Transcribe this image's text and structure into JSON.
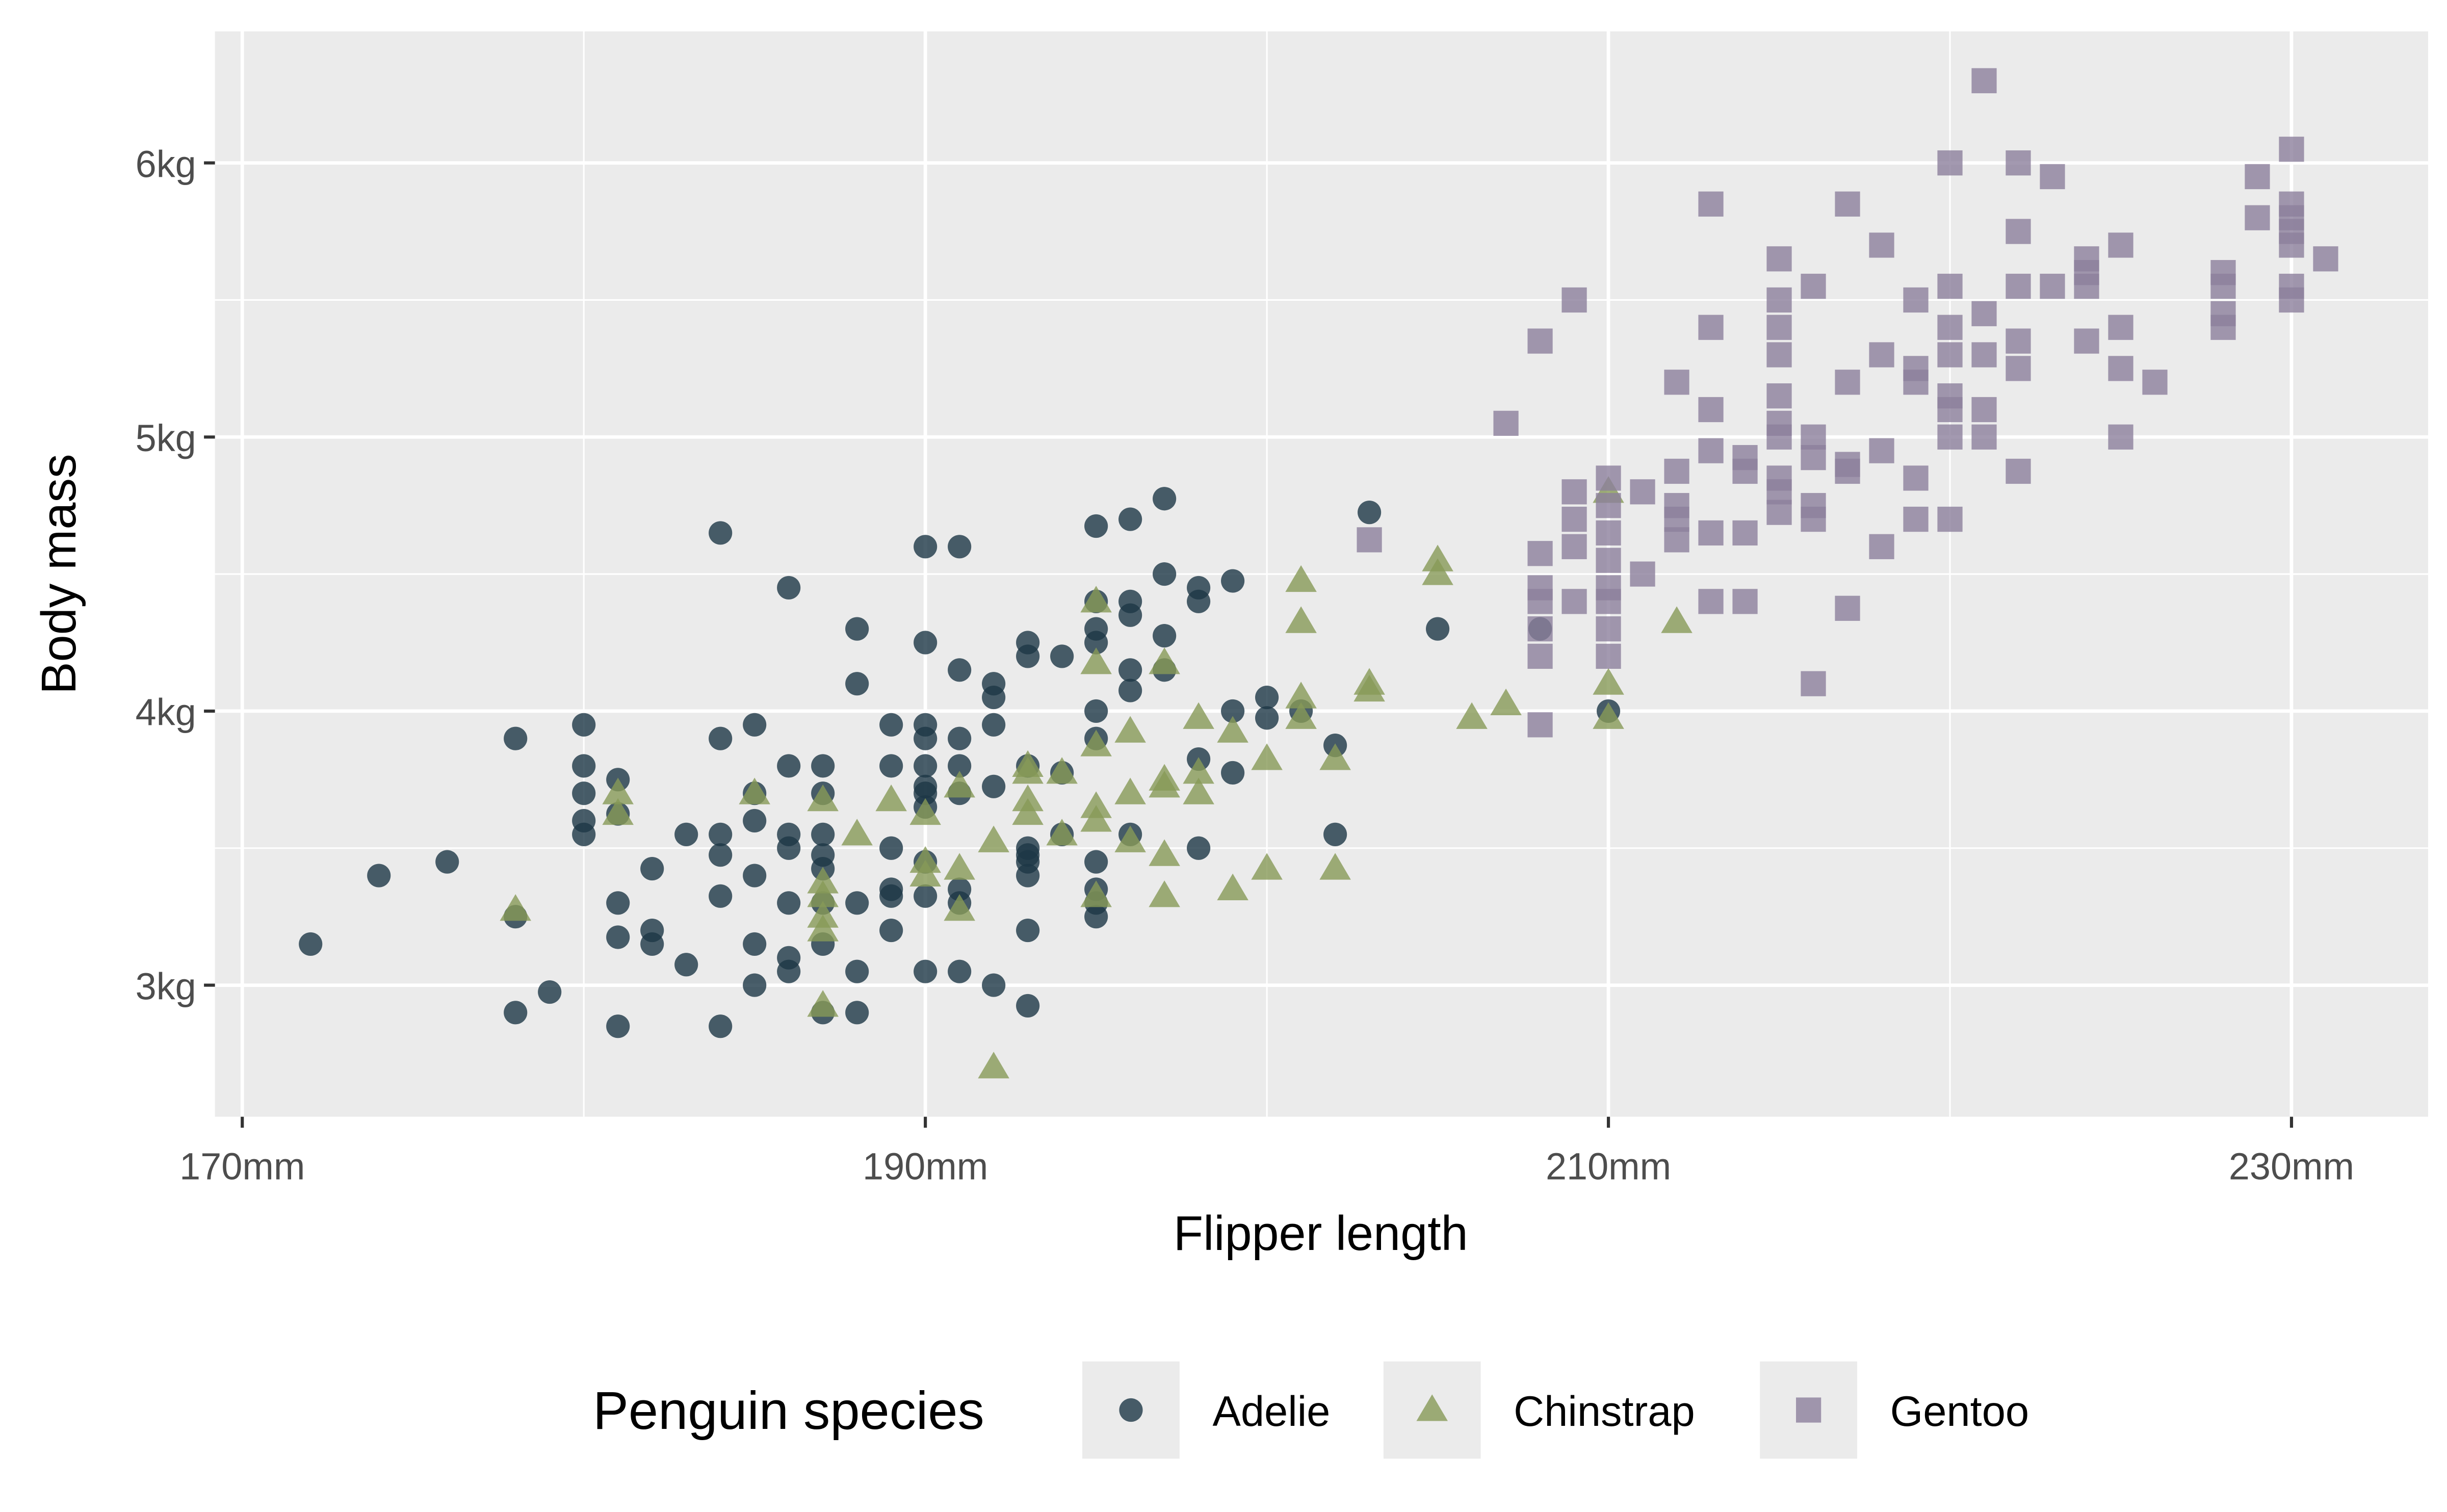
{
  "chart_data": {
    "type": "scatter",
    "title": "",
    "xlabel": "Flipper length",
    "ylabel": "Body mass",
    "xlim": [
      169.2,
      234.0
    ],
    "ylim": [
      2.52,
      6.48
    ],
    "x_ticks": [
      170,
      190,
      210,
      230
    ],
    "x_tick_labels": [
      "170mm",
      "190mm",
      "210mm",
      "230mm"
    ],
    "x_minor": [
      180,
      200,
      220
    ],
    "y_ticks": [
      3,
      4,
      5,
      6
    ],
    "y_tick_labels": [
      "3kg",
      "4kg",
      "5kg",
      "6kg"
    ],
    "y_minor": [
      3.5,
      4.5,
      5.5
    ],
    "grid": true,
    "legend": {
      "title": "Penguin species",
      "placement": "bottom"
    },
    "series": [
      {
        "name": "Adelie",
        "shape": "circle",
        "color": "#1d3746",
        "points": [
          [
            172,
            3.15
          ],
          [
            174,
            3.4
          ],
          [
            176,
            3.45
          ],
          [
            178,
            3.9
          ],
          [
            178,
            3.25
          ],
          [
            178,
            2.9
          ],
          [
            179,
            2.975
          ],
          [
            180,
            3.95
          ],
          [
            180,
            3.8
          ],
          [
            180,
            3.7
          ],
          [
            180,
            3.6
          ],
          [
            180,
            3.55
          ],
          [
            181,
            3.75
          ],
          [
            181,
            3.625
          ],
          [
            181,
            3.3
          ],
          [
            181,
            3.175
          ],
          [
            181,
            2.85
          ],
          [
            182,
            3.425
          ],
          [
            182,
            3.2
          ],
          [
            182,
            3.15
          ],
          [
            183,
            3.55
          ],
          [
            183,
            3.075
          ],
          [
            184,
            4.65
          ],
          [
            184,
            3.9
          ],
          [
            184,
            3.55
          ],
          [
            184,
            3.475
          ],
          [
            184,
            3.325
          ],
          [
            184,
            2.85
          ],
          [
            185,
            3.95
          ],
          [
            185,
            3.7
          ],
          [
            185,
            3.6
          ],
          [
            185,
            3.4
          ],
          [
            185,
            3.15
          ],
          [
            185,
            3.0
          ],
          [
            186,
            4.45
          ],
          [
            186,
            3.8
          ],
          [
            186,
            3.55
          ],
          [
            186,
            3.5
          ],
          [
            186,
            3.3
          ],
          [
            186,
            3.1
          ],
          [
            186,
            3.05
          ],
          [
            187,
            3.8
          ],
          [
            187,
            3.7
          ],
          [
            187,
            3.55
          ],
          [
            187,
            3.475
          ],
          [
            187,
            3.425
          ],
          [
            187,
            3.3
          ],
          [
            187,
            3.15
          ],
          [
            187,
            2.9
          ],
          [
            188,
            4.3
          ],
          [
            188,
            4.1
          ],
          [
            188,
            3.3
          ],
          [
            188,
            3.05
          ],
          [
            188,
            2.9
          ],
          [
            189,
            3.95
          ],
          [
            189,
            3.8
          ],
          [
            189,
            3.5
          ],
          [
            189,
            3.35
          ],
          [
            189,
            3.325
          ],
          [
            189,
            3.2
          ],
          [
            190,
            4.6
          ],
          [
            190,
            4.25
          ],
          [
            190,
            3.95
          ],
          [
            190,
            3.9
          ],
          [
            190,
            3.8
          ],
          [
            190,
            3.725
          ],
          [
            190,
            3.7
          ],
          [
            190,
            3.65
          ],
          [
            190,
            3.45
          ],
          [
            190,
            3.325
          ],
          [
            190,
            3.05
          ],
          [
            191,
            4.6
          ],
          [
            191,
            4.15
          ],
          [
            191,
            3.9
          ],
          [
            191,
            3.8
          ],
          [
            191,
            3.7
          ],
          [
            191,
            3.35
          ],
          [
            191,
            3.3
          ],
          [
            191,
            3.05
          ],
          [
            192,
            4.1
          ],
          [
            192,
            4.05
          ],
          [
            192,
            3.95
          ],
          [
            192,
            3.725
          ],
          [
            192,
            3.0
          ],
          [
            193,
            4.25
          ],
          [
            193,
            4.2
          ],
          [
            193,
            3.8
          ],
          [
            193,
            3.5
          ],
          [
            193,
            3.475
          ],
          [
            193,
            3.45
          ],
          [
            193,
            3.4
          ],
          [
            193,
            3.2
          ],
          [
            193,
            2.925
          ],
          [
            194,
            4.2
          ],
          [
            194,
            3.775
          ],
          [
            194,
            3.55
          ],
          [
            195,
            4.675
          ],
          [
            195,
            4.4
          ],
          [
            195,
            4.3
          ],
          [
            195,
            4.25
          ],
          [
            195,
            4.0
          ],
          [
            195,
            3.9
          ],
          [
            195,
            3.45
          ],
          [
            195,
            3.35
          ],
          [
            195,
            3.3
          ],
          [
            195,
            3.25
          ],
          [
            196,
            4.7
          ],
          [
            196,
            4.4
          ],
          [
            196,
            4.35
          ],
          [
            196,
            4.15
          ],
          [
            196,
            4.075
          ],
          [
            196,
            3.55
          ],
          [
            197,
            4.775
          ],
          [
            197,
            4.5
          ],
          [
            197,
            4.275
          ],
          [
            197,
            4.15
          ],
          [
            198,
            4.45
          ],
          [
            198,
            4.4
          ],
          [
            198,
            3.825
          ],
          [
            198,
            3.5
          ],
          [
            199,
            4.475
          ],
          [
            199,
            4.0
          ],
          [
            199,
            3.775
          ],
          [
            200,
            4.05
          ],
          [
            200,
            3.975
          ],
          [
            201,
            4.0
          ],
          [
            202,
            3.875
          ],
          [
            202,
            3.55
          ],
          [
            203,
            4.725
          ],
          [
            205,
            4.3
          ],
          [
            208,
            4.3
          ],
          [
            210,
            4.0
          ]
        ]
      },
      {
        "name": "Chinstrap",
        "shape": "triangle",
        "color": "#879a57",
        "points": [
          [
            178,
            3.275
          ],
          [
            181,
            3.7
          ],
          [
            181,
            3.625
          ],
          [
            185,
            3.7
          ],
          [
            187,
            3.675
          ],
          [
            187,
            3.375
          ],
          [
            187,
            3.325
          ],
          [
            187,
            3.25
          ],
          [
            187,
            3.2
          ],
          [
            187,
            2.925
          ],
          [
            188,
            3.55
          ],
          [
            189,
            3.675
          ],
          [
            190,
            3.625
          ],
          [
            190,
            3.45
          ],
          [
            190,
            3.4
          ],
          [
            191,
            3.725
          ],
          [
            191,
            3.425
          ],
          [
            191,
            3.275
          ],
          [
            192,
            3.525
          ],
          [
            192,
            2.7
          ],
          [
            193,
            3.8
          ],
          [
            193,
            3.775
          ],
          [
            193,
            3.675
          ],
          [
            193,
            3.625
          ],
          [
            194,
            3.775
          ],
          [
            194,
            3.55
          ],
          [
            195,
            4.4
          ],
          [
            195,
            4.175
          ],
          [
            195,
            3.875
          ],
          [
            195,
            3.65
          ],
          [
            195,
            3.6
          ],
          [
            195,
            3.325
          ],
          [
            196,
            3.925
          ],
          [
            196,
            3.7
          ],
          [
            196,
            3.525
          ],
          [
            197,
            4.175
          ],
          [
            197,
            3.75
          ],
          [
            197,
            3.725
          ],
          [
            197,
            3.475
          ],
          [
            197,
            3.325
          ],
          [
            198,
            3.975
          ],
          [
            198,
            3.775
          ],
          [
            198,
            3.7
          ],
          [
            199,
            3.925
          ],
          [
            199,
            3.35
          ],
          [
            200,
            3.825
          ],
          [
            200,
            3.425
          ],
          [
            201,
            4.475
          ],
          [
            201,
            4.325
          ],
          [
            201,
            4.05
          ],
          [
            201,
            3.975
          ],
          [
            202,
            3.825
          ],
          [
            202,
            3.425
          ],
          [
            203,
            4.1
          ],
          [
            203,
            4.075
          ],
          [
            205,
            4.55
          ],
          [
            205,
            4.5
          ],
          [
            206,
            3.975
          ],
          [
            207,
            4.025
          ],
          [
            210,
            4.8
          ],
          [
            210,
            4.1
          ],
          [
            210,
            3.975
          ],
          [
            212,
            4.325
          ]
        ]
      },
      {
        "name": "Gentoo",
        "shape": "square",
        "color": "#8c7f9c",
        "points": [
          [
            203,
            4.625
          ],
          [
            207,
            5.05
          ],
          [
            208,
            5.35
          ],
          [
            208,
            4.575
          ],
          [
            208,
            4.45
          ],
          [
            208,
            4.4
          ],
          [
            208,
            4.3
          ],
          [
            208,
            4.2
          ],
          [
            208,
            3.95
          ],
          [
            209,
            5.5
          ],
          [
            209,
            4.8
          ],
          [
            209,
            4.7
          ],
          [
            209,
            4.6
          ],
          [
            209,
            4.4
          ],
          [
            210,
            4.85
          ],
          [
            210,
            4.75
          ],
          [
            210,
            4.65
          ],
          [
            210,
            4.55
          ],
          [
            210,
            4.45
          ],
          [
            210,
            4.4
          ],
          [
            210,
            4.3
          ],
          [
            210,
            4.2
          ],
          [
            211,
            4.8
          ],
          [
            211,
            4.5
          ],
          [
            212,
            5.2
          ],
          [
            212,
            4.875
          ],
          [
            212,
            4.75
          ],
          [
            212,
            4.7
          ],
          [
            212,
            4.625
          ],
          [
            213,
            5.85
          ],
          [
            213,
            5.4
          ],
          [
            213,
            5.1
          ],
          [
            213,
            4.95
          ],
          [
            213,
            4.65
          ],
          [
            213,
            4.4
          ],
          [
            214,
            4.925
          ],
          [
            214,
            4.875
          ],
          [
            214,
            4.65
          ],
          [
            214,
            4.4
          ],
          [
            215,
            5.65
          ],
          [
            215,
            5.5
          ],
          [
            215,
            5.4
          ],
          [
            215,
            5.3
          ],
          [
            215,
            5.15
          ],
          [
            215,
            5.05
          ],
          [
            215,
            5.0
          ],
          [
            215,
            4.85
          ],
          [
            215,
            4.8
          ],
          [
            215,
            4.725
          ],
          [
            216,
            5.55
          ],
          [
            216,
            5.0
          ],
          [
            216,
            4.925
          ],
          [
            216,
            4.75
          ],
          [
            216,
            4.7
          ],
          [
            216,
            4.1
          ],
          [
            217,
            5.85
          ],
          [
            217,
            5.2
          ],
          [
            217,
            4.9
          ],
          [
            217,
            4.875
          ],
          [
            217,
            4.375
          ],
          [
            218,
            5.7
          ],
          [
            218,
            5.3
          ],
          [
            218,
            4.95
          ],
          [
            218,
            4.6
          ],
          [
            219,
            5.5
          ],
          [
            219,
            5.25
          ],
          [
            219,
            5.2
          ],
          [
            219,
            4.85
          ],
          [
            219,
            4.7
          ],
          [
            220,
            6.0
          ],
          [
            220,
            5.55
          ],
          [
            220,
            5.4
          ],
          [
            220,
            5.3
          ],
          [
            220,
            5.15
          ],
          [
            220,
            5.1
          ],
          [
            220,
            5.0
          ],
          [
            220,
            4.7
          ],
          [
            221,
            6.3
          ],
          [
            221,
            5.45
          ],
          [
            221,
            5.3
          ],
          [
            221,
            5.1
          ],
          [
            221,
            5.0
          ],
          [
            222,
            6.0
          ],
          [
            222,
            5.75
          ],
          [
            222,
            5.55
          ],
          [
            222,
            5.35
          ],
          [
            222,
            5.25
          ],
          [
            222,
            4.875
          ],
          [
            223,
            5.95
          ],
          [
            223,
            5.55
          ],
          [
            224,
            5.65
          ],
          [
            224,
            5.6
          ],
          [
            224,
            5.55
          ],
          [
            224,
            5.35
          ],
          [
            225,
            5.7
          ],
          [
            225,
            5.4
          ],
          [
            225,
            5.25
          ],
          [
            225,
            5.0
          ],
          [
            226,
            5.2
          ],
          [
            228,
            5.6
          ],
          [
            228,
            5.55
          ],
          [
            228,
            5.45
          ],
          [
            228,
            5.4
          ],
          [
            229,
            5.95
          ],
          [
            229,
            5.8
          ],
          [
            230,
            6.05
          ],
          [
            230,
            5.85
          ],
          [
            230,
            5.8
          ],
          [
            230,
            5.75
          ],
          [
            230,
            5.7
          ],
          [
            230,
            5.55
          ],
          [
            230,
            5.5
          ],
          [
            231,
            5.65
          ]
        ]
      }
    ]
  }
}
